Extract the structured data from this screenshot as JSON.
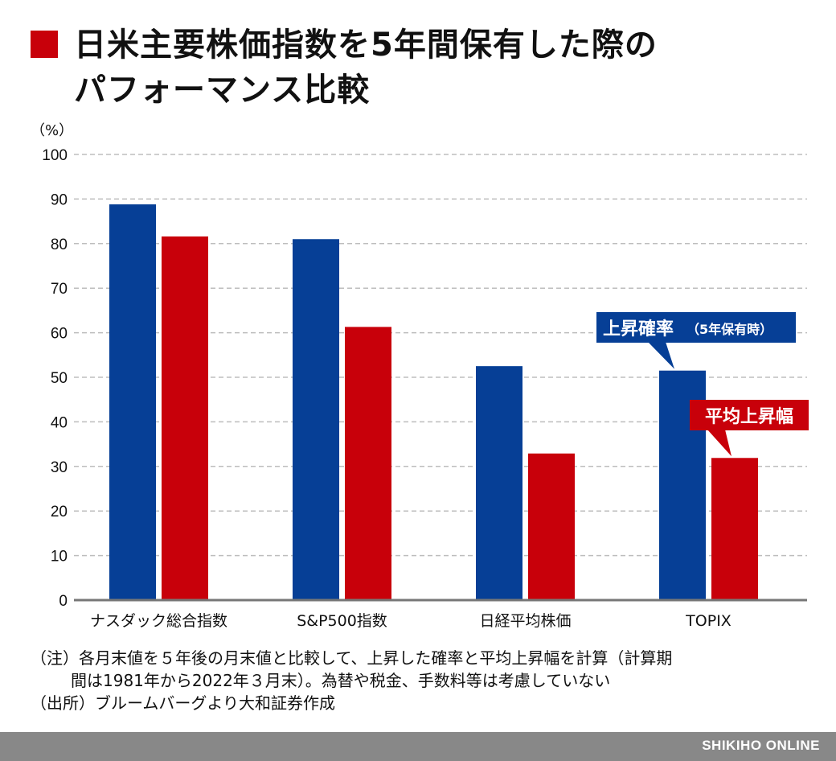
{
  "title_line1": "日米主要株価指数を5年間保有した際の",
  "title_line2": "パフォーマンス比較",
  "chart_data": {
    "type": "bar",
    "unit_label": "（%）",
    "ylim": [
      0,
      100
    ],
    "yticks": [
      0,
      10,
      20,
      30,
      40,
      50,
      60,
      70,
      80,
      90,
      100
    ],
    "grid": true,
    "categories": [
      "ナスダック総合指数",
      "S&P500指数",
      "日経平均株価",
      "TOPIX"
    ],
    "series": [
      {
        "name": "上昇確率",
        "name_suffix": "（5年保有時）",
        "color": "#063f96",
        "values": [
          88.8,
          81.0,
          52.5,
          51.5
        ]
      },
      {
        "name": "平均上昇幅",
        "name_suffix": "",
        "color": "#c8000a",
        "values": [
          81.6,
          61.3,
          32.9,
          31.9
        ]
      }
    ]
  },
  "notes": {
    "line1": "（注）各月末値を５年後の月末値と比較して、上昇した確率と平均上昇幅を計算（計算期",
    "line2": "間は1981年から2022年３月末）。為替や税金、手数料等は考慮していない",
    "line3": "（出所）ブルームバーグより大和証券作成"
  },
  "footer": "SHIKIHO ONLINE"
}
